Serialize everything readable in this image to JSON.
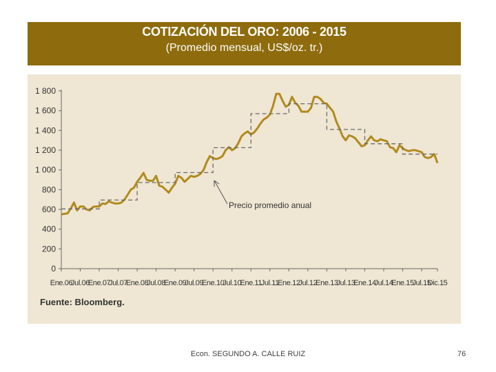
{
  "header": {
    "title": "COTIZACIÓN DEL ORO: 2006 - 2015",
    "subtitle": "(Promedio mensual, US$/oz. tr.)"
  },
  "source": "Fuente: Bloomberg.",
  "footer": {
    "author": "Econ. SEGUNDO A. CALLE RUIZ",
    "page": "76"
  },
  "colors": {
    "header_bg": "#8e6b0c",
    "panel_bg": "#efe6d3",
    "line": "#b08a1c",
    "annual": "#6a6a6a"
  },
  "chart_data": {
    "type": "line",
    "title": "COTIZACIÓN DEL ORO: 2006 - 2015",
    "subtitle": "(Promedio mensual, US$/oz. tr.)",
    "ylim": [
      0,
      1800
    ],
    "yticks": [
      0,
      200,
      400,
      600,
      800,
      1000,
      1200,
      1400,
      1600,
      1800
    ],
    "ytick_labels": [
      "0",
      "200",
      "400",
      "600",
      "800",
      "1 000",
      "1 200",
      "1 400",
      "1 600",
      "1 800"
    ],
    "xlim": [
      0,
      119
    ],
    "xticks": [
      0,
      6,
      12,
      18,
      24,
      30,
      36,
      42,
      48,
      54,
      60,
      66,
      72,
      78,
      84,
      90,
      96,
      102,
      108,
      114,
      119
    ],
    "xtick_labels": [
      "Ene.06",
      "Jul.06",
      "Ene.07",
      "Jul.07",
      "Ene.08",
      "Jul.08",
      "Ene.09",
      "Jul.09",
      "Ene.10",
      "Jul.10",
      "Ene.11",
      "Jul.11",
      "Ene.12",
      "Jul.12",
      "Ene.13",
      "Jul.13",
      "Ene.14",
      "Jul.14",
      "Ene.15",
      "Jul.15",
      "Dic.15"
    ],
    "grid": false,
    "annotation": "Precio promedio anual",
    "series": [
      {
        "style": "monthly",
        "values": [
          550,
          555,
          560,
          610,
          670,
          590,
          630,
          630,
          600,
          590,
          625,
          630,
          630,
          660,
          655,
          680,
          670,
          660,
          660,
          670,
          700,
          750,
          800,
          820,
          880,
          920,
          970,
          900,
          890,
          890,
          940,
          840,
          830,
          800,
          770,
          820,
          860,
          940,
          920,
          880,
          910,
          940,
          930,
          940,
          960,
          1000,
          1080,
          1140,
          1120,
          1110,
          1120,
          1140,
          1200,
          1230,
          1200,
          1220,
          1270,
          1340,
          1370,
          1390,
          1360,
          1380,
          1420,
          1470,
          1510,
          1530,
          1560,
          1650,
          1770,
          1770,
          1700,
          1640,
          1660,
          1740,
          1680,
          1650,
          1590,
          1590,
          1590,
          1630,
          1740,
          1740,
          1720,
          1680,
          1670,
          1630,
          1590,
          1490,
          1420,
          1340,
          1300,
          1350,
          1340,
          1320,
          1280,
          1240,
          1250,
          1300,
          1340,
          1300,
          1290,
          1310,
          1300,
          1290,
          1230,
          1220,
          1180,
          1250,
          1220,
          1200,
          1190,
          1200,
          1200,
          1190,
          1180,
          1130,
          1120,
          1130,
          1160,
          1070
        ]
      },
      {
        "name": "Precio promedio anual",
        "style": "annual",
        "years": [
          2006,
          2007,
          2008,
          2009,
          2010,
          2011,
          2012,
          2013,
          2014,
          2015
        ],
        "values": [
          605,
          695,
          872,
          973,
          1225,
          1570,
          1670,
          1410,
          1265,
          1160
        ]
      }
    ]
  }
}
